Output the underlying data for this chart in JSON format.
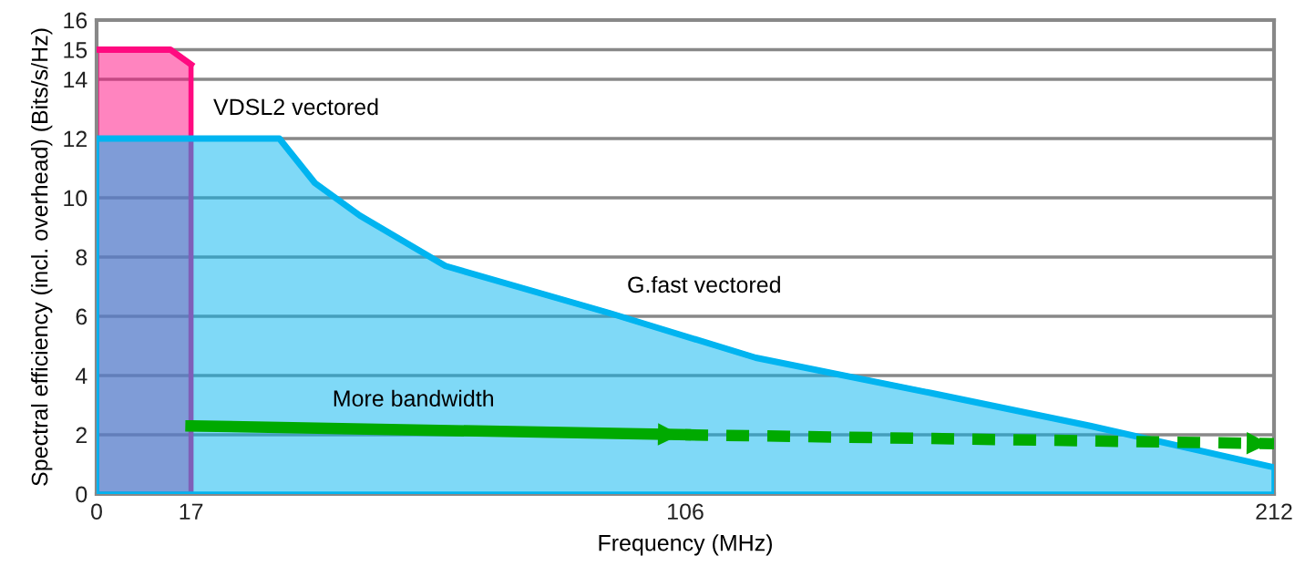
{
  "chart_data": {
    "type": "area",
    "xlabel": "Frequency (MHz)",
    "ylabel": "Spectral efficiency (incl. overhead) (Bits/s/Hz)",
    "xlim": [
      0,
      212
    ],
    "xticks": [
      0,
      17,
      106,
      212
    ],
    "ylim": [
      0,
      16
    ],
    "yticks": [
      0,
      2,
      4,
      6,
      8,
      10,
      12,
      14,
      15,
      16
    ],
    "grid": "y",
    "legend": false,
    "series": [
      {
        "name": "VDSL2 vectored",
        "color": "#ff0a80",
        "x": [
          0,
          13.3,
          17
        ],
        "values": [
          15,
          15,
          14.5
        ]
      },
      {
        "name": "G.fast vectored",
        "color": "#00b4f0",
        "x": [
          0,
          32.9,
          39.3,
          47.4,
          62.8,
          92.5,
          118.7,
          150.5,
          178.9,
          212
        ],
        "values": [
          12,
          12,
          10.5,
          9.4,
          7.7,
          6.1,
          4.6,
          3.4,
          2.3,
          0.9
        ]
      },
      {
        "type": "line",
        "color": "#00aa00",
        "line_style": "solid",
        "x": [
          17,
          106
        ],
        "values": [
          2.3,
          2.0
        ]
      },
      {
        "type": "line",
        "color": "#00aa00",
        "line_style": "dashed",
        "x": [
          106,
          212
        ],
        "values": [
          2.0,
          1.7
        ]
      }
    ],
    "annotations": [
      "More bandwidth"
    ]
  }
}
